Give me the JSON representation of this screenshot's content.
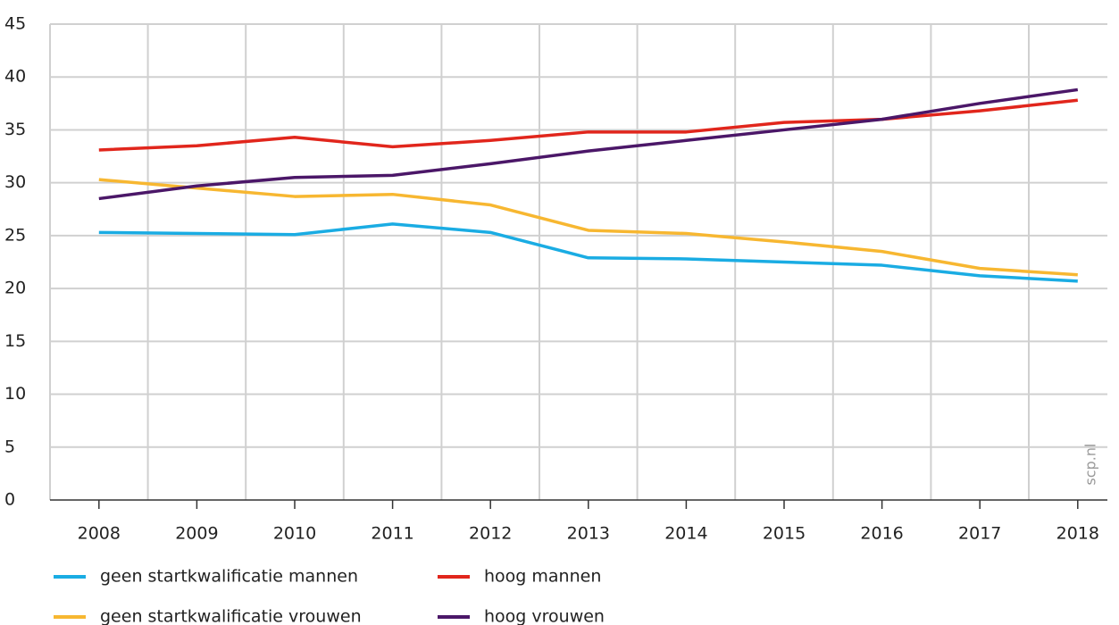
{
  "chart_data": {
    "type": "line",
    "categories": [
      "2008",
      "2009",
      "2010",
      "2011",
      "2012",
      "2013",
      "2014",
      "2015",
      "2016",
      "2017",
      "2018"
    ],
    "series": [
      {
        "name": "geen startkwalificatie mannen",
        "color": "#1aace3",
        "values": [
          25.3,
          25.2,
          25.1,
          26.1,
          25.3,
          22.9,
          22.8,
          22.5,
          22.2,
          21.2,
          20.7
        ]
      },
      {
        "name": "hoog mannen",
        "color": "#e1261c",
        "values": [
          33.1,
          33.5,
          34.3,
          33.4,
          34.0,
          34.8,
          34.8,
          35.7,
          36.0,
          36.8,
          37.8
        ]
      },
      {
        "name": "geen startkwalificatie vrouwen",
        "color": "#f7b731",
        "values": [
          30.3,
          29.5,
          28.7,
          28.9,
          27.9,
          25.5,
          25.2,
          24.4,
          23.5,
          21.9,
          21.3
        ]
      },
      {
        "name": "hoog vrouwen",
        "color": "#4b1768",
        "values": [
          28.5,
          29.7,
          30.5,
          30.7,
          31.8,
          33.0,
          34.0,
          35.0,
          36.0,
          37.5,
          38.8
        ]
      }
    ],
    "ylim": [
      0,
      45
    ],
    "yticks": [
      0,
      5,
      10,
      15,
      20,
      25,
      30,
      35,
      40,
      45
    ],
    "grid": true,
    "source": "scp.nl"
  }
}
